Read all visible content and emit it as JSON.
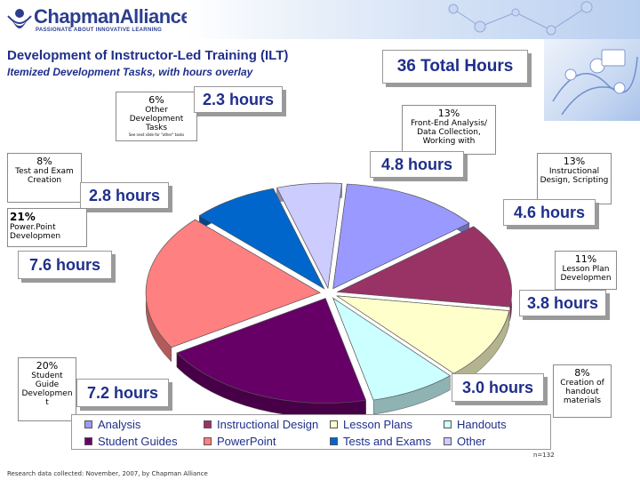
{
  "header": {
    "logo_text": "ChapmanAlliance",
    "logo_tagline": "PASSIONATE ABOUT INNOVATIVE LEARNING",
    "title": "Development of Instructor-Led Training (ILT)",
    "subtitle": "Itemized Development Tasks, with hours overlay",
    "total_hours": "36 Total Hours"
  },
  "footer": {
    "research_note": "Research data collected: November, 2007, by Chapman Alliance",
    "sample_size": "n=132"
  },
  "callouts": {
    "other": {
      "pct": "6%",
      "caption": "Other Development Tasks",
      "note": "See next slide for \"other\" tasks",
      "hours": "2.3 hours"
    },
    "analysis": {
      "pct": "13%",
      "caption": "Front-End Analysis/ Data Collection, Working with",
      "hours": "4.8 hours"
    },
    "design": {
      "pct": "13%",
      "caption": "Instructional Design, Scripting",
      "hours": "4.6 hours"
    },
    "tests": {
      "pct": "8%",
      "caption": "Test and Exam Creation",
      "hours": "2.8 hours"
    },
    "powerpoint": {
      "pct": "21%",
      "caption": "Power.Point Developmen",
      "hours": "7.6 hours"
    },
    "lesson": {
      "pct": "11%",
      "caption": "Lesson Plan Developmen",
      "hours": "3.8 hours"
    },
    "guides": {
      "pct": "20%",
      "caption": "Student Guide Developmen t",
      "hours": "7.2 hours"
    },
    "handouts": {
      "pct": "8%",
      "caption": "Creation of handout materials",
      "hours": "3.0 hours"
    }
  },
  "chart_data": {
    "type": "pie",
    "title": "Development of Instructor-Led Training (ILT)",
    "subtitle": "Itemized Development Tasks, with hours overlay",
    "total": "36 Total Hours",
    "legend_placement": "bottom",
    "slices": [
      {
        "name": "Analysis",
        "percent": 13,
        "hours": 4.8,
        "color": "#9a99ff"
      },
      {
        "name": "Instructional Design",
        "percent": 13,
        "hours": 4.6,
        "color": "#993366"
      },
      {
        "name": "Lesson Plans",
        "percent": 11,
        "hours": 3.8,
        "color": "#ffffcc"
      },
      {
        "name": "Handouts",
        "percent": 8,
        "hours": 3.0,
        "color": "#ccffff"
      },
      {
        "name": "Student Guides",
        "percent": 20,
        "hours": 7.2,
        "color": "#660066"
      },
      {
        "name": "PowerPoint",
        "percent": 21,
        "hours": 7.6,
        "color": "#ff8080"
      },
      {
        "name": "Tests and Exams",
        "percent": 8,
        "hours": 2.8,
        "color": "#0066cc"
      },
      {
        "name": "Other",
        "percent": 6,
        "hours": 2.3,
        "color": "#ccccff"
      }
    ],
    "n": "n=132"
  },
  "legend": [
    {
      "label": "Analysis",
      "color": "#9a99ff"
    },
    {
      "label": "Instructional Design",
      "color": "#993366"
    },
    {
      "label": "Lesson Plans",
      "color": "#ffffcc"
    },
    {
      "label": "Handouts",
      "color": "#ccffff"
    },
    {
      "label": "Student Guides",
      "color": "#660066"
    },
    {
      "label": "PowerPoint",
      "color": "#ff8080"
    },
    {
      "label": "Tests and Exams",
      "color": "#0066cc"
    },
    {
      "label": "Other",
      "color": "#ccccff"
    }
  ]
}
